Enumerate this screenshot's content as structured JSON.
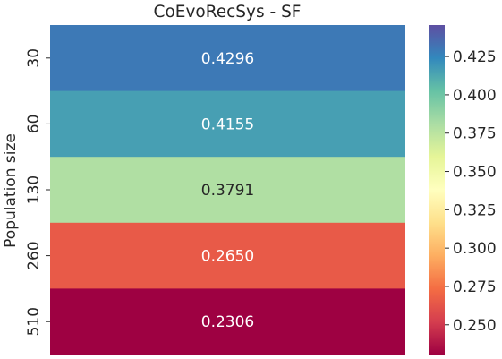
{
  "chart_data": {
    "type": "heatmap",
    "title": "CoEvoRecSys - SF",
    "xlabel": "",
    "ylabel": "Population size",
    "rows": [
      "30",
      "60",
      "130",
      "260",
      "510"
    ],
    "values": [
      0.4296,
      0.4155,
      0.3791,
      0.265,
      0.2306
    ],
    "value_labels": [
      "0.4296",
      "0.4155",
      "0.3791",
      "0.2650",
      "0.2306"
    ],
    "colormap": "Spectral",
    "colorbar": {
      "range": [
        0.2306,
        0.4455
      ],
      "ticks": [
        0.25,
        0.275,
        0.3,
        0.325,
        0.35,
        0.375,
        0.4,
        0.425
      ],
      "tick_labels": [
        "0.250",
        "0.275",
        "0.300",
        "0.325",
        "0.350",
        "0.375",
        "0.400",
        "0.425"
      ]
    },
    "colors": {
      "stops": [
        "#9e0142",
        "#d53e4f",
        "#f46d43",
        "#fdae61",
        "#fee08b",
        "#ffffbf",
        "#e6f598",
        "#abdda4",
        "#66c2a5",
        "#3288bd",
        "#5e4fa2"
      ]
    }
  }
}
